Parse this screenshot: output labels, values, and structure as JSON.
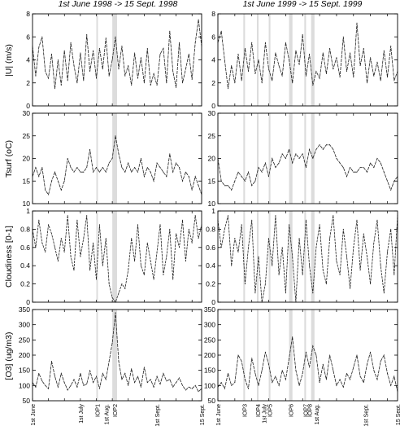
{
  "chart_data": [
    {
      "type": "line",
      "id": "wind-1998",
      "title": "1st June 1998 -> 15 Sept. 1998",
      "ylabel": "|U| (m/s)",
      "ylim": [
        0,
        8
      ],
      "yticks": [
        0,
        2,
        4,
        6,
        8
      ],
      "xlim": [
        0,
        106
      ],
      "shaded": [
        [
          40,
          41
        ],
        [
          50,
          53
        ]
      ],
      "x": [
        0,
        2,
        4,
        6,
        8,
        10,
        12,
        14,
        16,
        18,
        20,
        22,
        24,
        26,
        28,
        30,
        32,
        34,
        36,
        38,
        40,
        42,
        44,
        46,
        48,
        50,
        52,
        54,
        56,
        58,
        60,
        62,
        64,
        66,
        68,
        70,
        72,
        74,
        76,
        78,
        80,
        82,
        84,
        86,
        88,
        90,
        92,
        94,
        96,
        98,
        100,
        102,
        104,
        106
      ],
      "values": [
        5.2,
        2.6,
        5.1,
        6.0,
        3.0,
        2.4,
        4.5,
        1.5,
        4.0,
        1.8,
        4.8,
        2.2,
        5.5,
        3.5,
        2.0,
        4.6,
        2.2,
        6.2,
        3.0,
        4.8,
        2.4,
        5.0,
        3.2,
        5.9,
        2.6,
        4.0,
        6.0,
        3.2,
        5.2,
        2.6,
        3.5,
        1.8,
        4.6,
        2.4,
        4.2,
        2.0,
        5.0,
        1.8,
        2.8,
        1.8,
        4.5,
        5.0,
        2.0,
        6.5,
        3.0,
        1.6,
        5.5,
        2.0,
        3.2,
        4.5,
        2.3,
        5.5,
        7.5,
        5.2
      ]
    },
    {
      "type": "line",
      "id": "wind-1999",
      "title": "1st June 1999 -> 15 Sept. 1999",
      "ylabel": "",
      "ylim": [
        0,
        8
      ],
      "yticks": [
        0,
        2,
        4,
        6,
        8
      ],
      "xlim": [
        0,
        106
      ],
      "shaded": [
        [
          15,
          16
        ],
        [
          23,
          24
        ],
        [
          30,
          31
        ],
        [
          42,
          44
        ],
        [
          51,
          52
        ],
        [
          55,
          57
        ]
      ],
      "x": [
        0,
        2,
        4,
        6,
        8,
        10,
        12,
        14,
        16,
        18,
        20,
        22,
        24,
        26,
        28,
        30,
        32,
        34,
        36,
        38,
        40,
        42,
        44,
        46,
        48,
        50,
        52,
        54,
        56,
        58,
        60,
        62,
        64,
        66,
        68,
        70,
        72,
        74,
        76,
        78,
        80,
        82,
        84,
        86,
        88,
        90,
        92,
        94,
        96,
        98,
        100,
        102,
        104,
        106
      ],
      "values": [
        5.5,
        6.5,
        4.0,
        1.5,
        3.5,
        2.0,
        4.5,
        2.2,
        5.0,
        3.0,
        5.5,
        2.8,
        4.0,
        2.0,
        5.5,
        3.2,
        2.2,
        4.6,
        3.5,
        2.6,
        5.5,
        4.0,
        2.0,
        4.8,
        3.6,
        6.2,
        2.6,
        4.5,
        1.8,
        3.0,
        2.4,
        4.6,
        2.8,
        5.0,
        3.2,
        4.2,
        2.5,
        6.0,
        3.0,
        4.6,
        2.5,
        7.2,
        3.5,
        5.0,
        2.0,
        4.2,
        2.6,
        3.8,
        2.2,
        4.8,
        2.5,
        5.2,
        2.2,
        3.0
      ]
    },
    {
      "type": "line",
      "id": "tsurf-1998",
      "title": "",
      "ylabel": "Tsurf (oC)",
      "ylim": [
        10,
        30
      ],
      "yticks": [
        10,
        15,
        20,
        25,
        30
      ],
      "xlim": [
        0,
        106
      ],
      "shaded": [
        [
          40,
          41
        ],
        [
          50,
          53
        ]
      ],
      "x": [
        0,
        2,
        4,
        6,
        8,
        10,
        12,
        14,
        16,
        18,
        20,
        22,
        24,
        26,
        28,
        30,
        32,
        34,
        36,
        38,
        40,
        42,
        44,
        46,
        48,
        50,
        52,
        54,
        56,
        58,
        60,
        62,
        64,
        66,
        68,
        70,
        72,
        74,
        76,
        78,
        80,
        82,
        84,
        86,
        88,
        90,
        92,
        94,
        96,
        98,
        100,
        102,
        104,
        106
      ],
      "values": [
        16,
        18,
        16,
        18,
        13,
        12,
        15,
        17,
        15,
        13,
        15,
        20,
        18,
        17,
        18,
        17,
        17,
        18,
        22,
        17,
        18,
        17,
        18,
        17,
        19,
        20,
        25,
        21,
        18,
        17,
        19,
        17,
        18,
        17,
        20,
        16,
        18,
        17,
        15,
        19,
        18,
        17,
        16,
        21,
        17,
        19,
        18,
        15,
        17,
        16,
        13,
        16,
        14,
        12
      ]
    },
    {
      "type": "line",
      "id": "tsurf-1999",
      "title": "",
      "ylabel": "",
      "ylim": [
        10,
        30
      ],
      "yticks": [
        10,
        15,
        20,
        25,
        30
      ],
      "xlim": [
        0,
        106
      ],
      "shaded": [
        [
          15,
          16
        ],
        [
          23,
          24
        ],
        [
          30,
          31
        ],
        [
          42,
          44
        ],
        [
          51,
          52
        ],
        [
          55,
          57
        ]
      ],
      "x": [
        0,
        2,
        4,
        6,
        8,
        10,
        12,
        14,
        16,
        18,
        20,
        22,
        24,
        26,
        28,
        30,
        32,
        34,
        36,
        38,
        40,
        42,
        44,
        46,
        48,
        50,
        52,
        54,
        56,
        58,
        60,
        62,
        64,
        66,
        68,
        70,
        72,
        74,
        76,
        78,
        80,
        82,
        84,
        86,
        88,
        90,
        92,
        94,
        96,
        98,
        100,
        102,
        104,
        106
      ],
      "values": [
        20,
        15,
        14,
        14,
        13,
        15,
        17,
        16,
        15,
        17,
        14,
        15,
        18,
        17,
        19,
        16,
        20,
        18,
        19,
        21,
        20,
        22,
        19,
        21,
        20,
        21,
        18,
        22,
        20,
        22,
        23,
        22,
        23,
        23,
        22,
        20,
        19,
        18,
        16,
        18,
        17,
        17,
        18,
        18,
        17,
        19,
        18,
        20,
        19,
        17,
        15,
        13,
        15,
        16
      ]
    },
    {
      "type": "line",
      "id": "cloud-1998",
      "title": "",
      "ylabel": "Cloudiness [0-1]",
      "ylim": [
        0,
        1
      ],
      "yticks": [
        0,
        0.2,
        0.4,
        0.6,
        0.8,
        1
      ],
      "xlim": [
        0,
        106
      ],
      "shaded": [
        [
          40,
          41
        ],
        [
          50,
          53
        ]
      ],
      "x": [
        0,
        2,
        4,
        6,
        8,
        10,
        12,
        14,
        16,
        18,
        20,
        22,
        24,
        26,
        28,
        30,
        32,
        34,
        36,
        38,
        40,
        42,
        44,
        46,
        48,
        50,
        52,
        54,
        56,
        58,
        60,
        62,
        64,
        66,
        68,
        70,
        72,
        74,
        76,
        78,
        80,
        82,
        84,
        86,
        88,
        90,
        92,
        94,
        96,
        98,
        100,
        102,
        104,
        106
      ],
      "values": [
        0.8,
        0.6,
        0.9,
        0.65,
        0.55,
        0.85,
        0.75,
        0.6,
        0.45,
        0.7,
        0.55,
        0.95,
        0.5,
        0.35,
        0.9,
        0.5,
        0.7,
        0.95,
        0.35,
        0.65,
        0.25,
        0.85,
        0.4,
        0.7,
        0.2,
        0.05,
        0.0,
        0.1,
        0.2,
        0.15,
        0.35,
        0.7,
        0.45,
        0.85,
        0.4,
        0.3,
        0.65,
        0.45,
        0.25,
        0.55,
        0.85,
        0.3,
        0.5,
        0.8,
        0.25,
        0.75,
        0.6,
        0.9,
        0.45,
        0.8,
        0.65,
        0.95,
        0.7,
        0.85
      ]
    },
    {
      "type": "line",
      "id": "cloud-1999",
      "title": "",
      "ylabel": "",
      "ylim": [
        0,
        1
      ],
      "yticks": [
        0,
        0.2,
        0.4,
        0.6,
        0.8,
        1
      ],
      "xlim": [
        0,
        106
      ],
      "shaded": [
        [
          15,
          16
        ],
        [
          23,
          24
        ],
        [
          30,
          31
        ],
        [
          42,
          44
        ],
        [
          51,
          52
        ],
        [
          55,
          57
        ]
      ],
      "x": [
        0,
        2,
        4,
        6,
        8,
        10,
        12,
        14,
        16,
        18,
        20,
        22,
        24,
        26,
        28,
        30,
        32,
        34,
        36,
        38,
        40,
        42,
        44,
        46,
        48,
        50,
        52,
        54,
        56,
        58,
        60,
        62,
        64,
        66,
        68,
        70,
        72,
        74,
        76,
        78,
        80,
        82,
        84,
        86,
        88,
        90,
        92,
        94,
        96,
        98,
        100,
        102,
        104,
        106
      ],
      "values": [
        0.9,
        0.6,
        0.8,
        0.95,
        0.4,
        0.7,
        0.55,
        0.85,
        0.2,
        0.6,
        0.9,
        0.1,
        0.5,
        0.0,
        0.2,
        0.7,
        0.4,
        0.95,
        0.3,
        0.6,
        0.1,
        0.85,
        0.5,
        0.0,
        0.7,
        0.3,
        0.9,
        0.4,
        0.1,
        0.6,
        0.85,
        0.35,
        0.2,
        0.7,
        0.95,
        0.45,
        0.3,
        0.8,
        0.5,
        0.15,
        0.6,
        0.9,
        0.35,
        0.75,
        0.5,
        0.2,
        0.65,
        0.9,
        0.4,
        0.1,
        0.55,
        0.8,
        0.3,
        0.95
      ]
    },
    {
      "type": "line",
      "id": "o3-1998",
      "title": "",
      "ylabel": "[O3] (ug/m3)",
      "ylim": [
        50,
        350
      ],
      "yticks": [
        50,
        100,
        150,
        200,
        250,
        300,
        350
      ],
      "xlim": [
        0,
        106
      ],
      "shaded": [
        [
          40,
          41
        ],
        [
          50,
          53
        ]
      ],
      "xtick_labels": [
        {
          "label": "1st June",
          "x": 0
        },
        {
          "label": "1st July",
          "x": 30
        },
        {
          "label": "IOP1",
          "x": 40.5
        },
        {
          "label": "1st Aug.",
          "x": 46
        },
        {
          "label": "IOP2",
          "x": 51.5
        },
        {
          "label": "1st Sept.",
          "x": 78
        },
        {
          "label": "15 Sept.",
          "x": 106
        }
      ],
      "x": [
        0,
        2,
        4,
        6,
        8,
        10,
        12,
        14,
        16,
        18,
        20,
        22,
        24,
        26,
        28,
        30,
        32,
        34,
        36,
        38,
        40,
        42,
        44,
        46,
        48,
        50,
        52,
        54,
        56,
        58,
        60,
        62,
        64,
        66,
        68,
        70,
        72,
        74,
        76,
        78,
        80,
        82,
        84,
        86,
        88,
        90,
        92,
        94,
        96,
        98,
        100,
        102,
        104,
        106
      ],
      "values": [
        110,
        95,
        140,
        115,
        100,
        90,
        180,
        130,
        95,
        140,
        110,
        85,
        100,
        120,
        95,
        140,
        100,
        105,
        150,
        110,
        130,
        90,
        140,
        120,
        180,
        240,
        340,
        180,
        120,
        140,
        100,
        155,
        110,
        130,
        95,
        160,
        110,
        120,
        95,
        130,
        105,
        140,
        115,
        120,
        95,
        110,
        125,
        100,
        85,
        95,
        90,
        100,
        80,
        90
      ]
    },
    {
      "type": "line",
      "id": "o3-1999",
      "title": "",
      "ylabel": "",
      "ylim": [
        50,
        350
      ],
      "yticks": [
        50,
        100,
        150,
        200,
        250,
        300,
        350
      ],
      "xlim": [
        0,
        106
      ],
      "shaded": [
        [
          15,
          16
        ],
        [
          23,
          24
        ],
        [
          30,
          31
        ],
        [
          42,
          44
        ],
        [
          51,
          52
        ],
        [
          55,
          57
        ]
      ],
      "xtick_labels": [
        {
          "label": "1st June",
          "x": 0
        },
        {
          "label": "IOP3",
          "x": 15.5
        },
        {
          "label": "IOP4",
          "x": 23.5
        },
        {
          "label": "1st July",
          "x": 27
        },
        {
          "label": "IOP5",
          "x": 30.5
        },
        {
          "label": "IOP6",
          "x": 43
        },
        {
          "label": "IOP7",
          "x": 51.5
        },
        {
          "label": "IOP8",
          "x": 54
        },
        {
          "label": "1st Aug.",
          "x": 58
        },
        {
          "label": "1st Sept.",
          "x": 87
        },
        {
          "label": "15 Sept.",
          "x": 106
        }
      ],
      "x": [
        0,
        2,
        4,
        6,
        8,
        10,
        12,
        14,
        16,
        18,
        20,
        22,
        24,
        26,
        28,
        30,
        32,
        34,
        36,
        38,
        40,
        42,
        44,
        46,
        48,
        50,
        52,
        54,
        56,
        58,
        60,
        62,
        64,
        66,
        68,
        70,
        72,
        74,
        76,
        78,
        80,
        82,
        84,
        86,
        88,
        90,
        92,
        94,
        96,
        98,
        100,
        102,
        104,
        106
      ],
      "values": [
        95,
        110,
        90,
        140,
        100,
        110,
        200,
        180,
        120,
        90,
        190,
        140,
        100,
        150,
        210,
        170,
        110,
        130,
        100,
        150,
        120,
        190,
        260,
        150,
        100,
        140,
        210,
        160,
        230,
        200,
        110,
        170,
        120,
        200,
        150,
        100,
        120,
        95,
        140,
        120,
        160,
        200,
        130,
        110,
        170,
        210,
        150,
        120,
        180,
        200,
        140,
        100,
        130,
        80
      ]
    }
  ]
}
